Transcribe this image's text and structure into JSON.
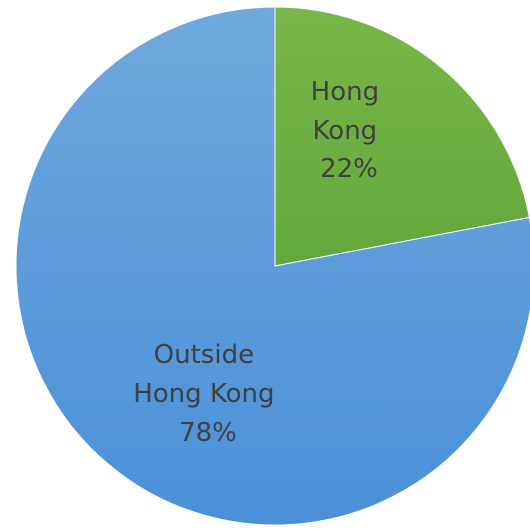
{
  "chart_data": {
    "type": "pie",
    "title": "",
    "slices": [
      {
        "label_lines": [
          "Hong",
          "Kong"
        ],
        "value": 22,
        "value_label": "22%",
        "color": "#70ad47"
      },
      {
        "label_lines": [
          "Outside",
          "Hong Kong"
        ],
        "value": 78,
        "value_label": "78%",
        "color": "#5b9bd5"
      }
    ],
    "legend": "none",
    "start_angle_deg": 0,
    "direction": "clockwise"
  }
}
